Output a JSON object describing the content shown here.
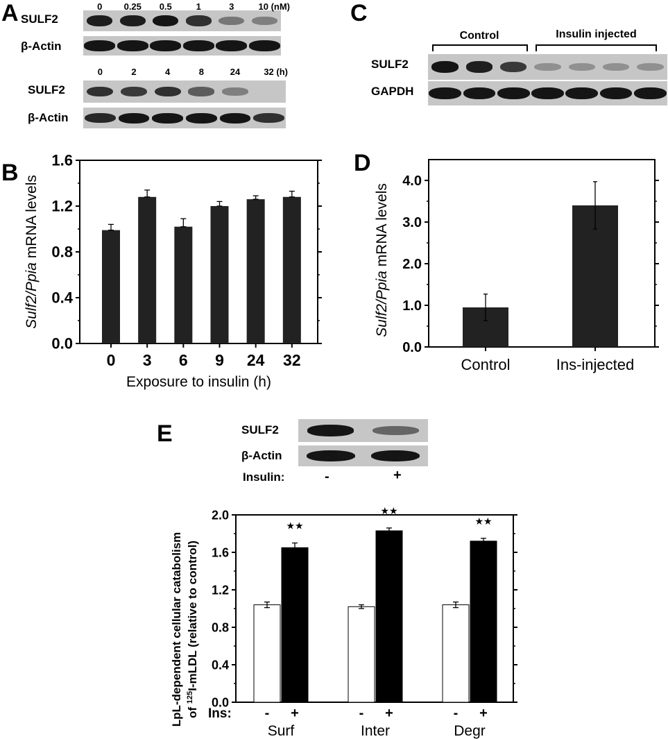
{
  "panels": {
    "a": "A",
    "b": "B",
    "c": "C",
    "d": "D",
    "e": "E"
  },
  "panel_a": {
    "blot1": {
      "label": "SULF2",
      "loading_label": "β-Actin",
      "lanes": [
        "0",
        "0.25",
        "0.5",
        "1",
        "3",
        "10 (nM)"
      ],
      "band_intensity": [
        0.95,
        0.95,
        1.0,
        0.85,
        0.45,
        0.4
      ]
    },
    "blot2": {
      "label": "SULF2",
      "loading_label": "β-Actin",
      "lanes": [
        "0",
        "2",
        "4",
        "8",
        "24",
        "32 (h)"
      ],
      "band_intensity": [
        0.85,
        0.8,
        0.85,
        0.6,
        0.4,
        0.0
      ]
    }
  },
  "panel_c": {
    "groups": [
      "Control",
      "Insulin injected"
    ],
    "label": "SULF2",
    "loading_label": "GAPDH",
    "band_intensity": [
      1.0,
      0.95,
      0.8,
      0.3,
      0.3,
      0.3,
      0.3
    ]
  },
  "panel_e_blot": {
    "label": "SULF2",
    "loading_label": "β-Actin",
    "treatment_label": "Insulin:",
    "lanes": [
      "-",
      "+"
    ],
    "band_intensity": [
      1.0,
      0.55
    ]
  },
  "chart_data": [
    {
      "id": "B",
      "type": "bar",
      "categories": [
        "0",
        "3",
        "6",
        "9",
        "24",
        "32"
      ],
      "values": [
        0.99,
        1.28,
        1.02,
        1.2,
        1.26,
        1.28
      ],
      "errors": [
        0.05,
        0.06,
        0.07,
        0.04,
        0.03,
        0.05
      ],
      "xlabel": "Exposure to insulin (h)",
      "ylabel_italic": "Sulf2/Ppia",
      "ylabel_rest": " mRNA levels",
      "ylim": [
        0,
        1.6
      ],
      "yticks": [
        "0.0",
        "0.4",
        "0.8",
        "1.2",
        "1.6"
      ],
      "bar_color": "#222222"
    },
    {
      "id": "D",
      "type": "bar",
      "categories": [
        "Control",
        "Ins-injected"
      ],
      "values": [
        0.95,
        3.4
      ],
      "errors": [
        0.32,
        0.57
      ],
      "ylabel_italic": "Sulf2/Ppia",
      "ylabel_rest": " mRNA levels",
      "ylim": [
        0,
        4.5
      ],
      "yticks": [
        "0.0",
        "1.0",
        "2.0",
        "3.0",
        "4.0"
      ],
      "bar_color": "#222222"
    },
    {
      "id": "E",
      "type": "bar",
      "groups": [
        "Surf",
        "Inter",
        "Degr"
      ],
      "treatment_prefix": "Ins:",
      "treatment_labels": [
        "-",
        "+"
      ],
      "series": [
        {
          "values": [
            1.04,
            1.02,
            1.04
          ],
          "errors": [
            0.03,
            0.02,
            0.03
          ],
          "color": "#ffffff"
        },
        {
          "values": [
            1.65,
            1.83,
            1.72
          ],
          "errors": [
            0.05,
            0.03,
            0.03
          ],
          "color": "#000000"
        }
      ],
      "significance": "★★",
      "ylabel_line1": "LpL-dependent cellular catabolism",
      "ylabel_line2_pre": "of ",
      "ylabel_line2_sup": "125",
      "ylabel_line2_post": "I-mLDL (relative to control)",
      "ylim": [
        0,
        2.0
      ],
      "yticks": [
        "0.0",
        "0.4",
        "0.8",
        "1.2",
        "1.6",
        "2.0"
      ]
    }
  ]
}
